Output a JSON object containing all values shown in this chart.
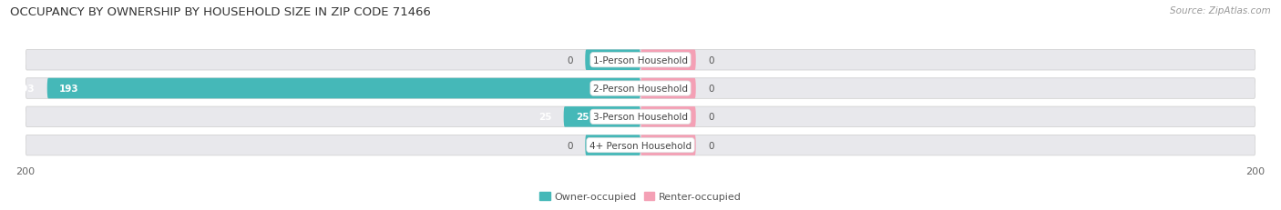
{
  "title": "OCCUPANCY BY OWNERSHIP BY HOUSEHOLD SIZE IN ZIP CODE 71466",
  "source": "Source: ZipAtlas.com",
  "categories": [
    "1-Person Household",
    "2-Person Household",
    "3-Person Household",
    "4+ Person Household"
  ],
  "owner_values": [
    0,
    193,
    25,
    0
  ],
  "renter_values": [
    0,
    0,
    0,
    0
  ],
  "owner_color": "#45b8b8",
  "renter_color": "#f4a0b5",
  "bar_bg_color": "#e8e8ec",
  "bar_height": 0.72,
  "xlim": 200,
  "min_bar_width": 18,
  "title_fontsize": 9.5,
  "source_fontsize": 7.5,
  "label_fontsize": 7.5,
  "value_fontsize": 7.5,
  "axis_label_fontsize": 8,
  "legend_fontsize": 8,
  "background_color": "#ffffff"
}
